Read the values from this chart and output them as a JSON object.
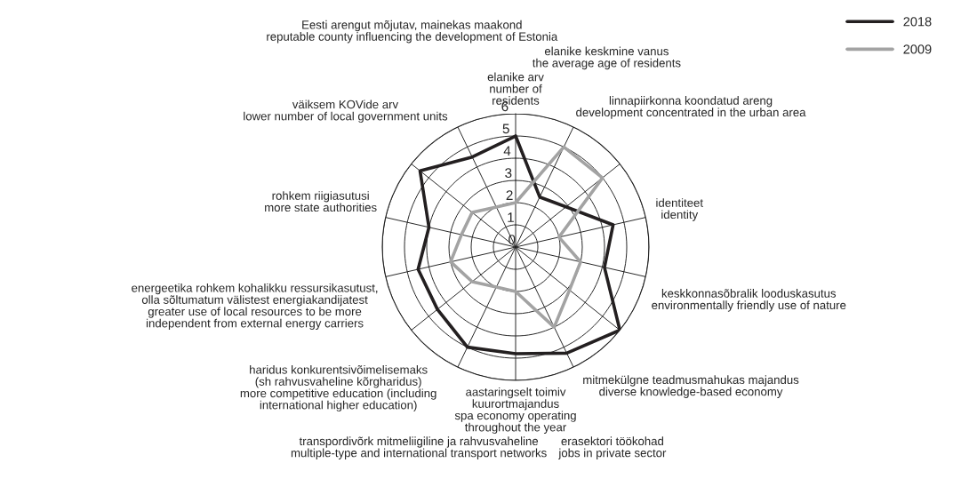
{
  "chart_data": {
    "type": "radar",
    "categories": [
      "elanike arv\nnumber of\nresidents",
      "elanike keskmine vanus\nthe average age of residents",
      "linnapiirkonna koondatud areng\ndevelopment concentrated in the urban area",
      "identiteet\nidentity",
      "keskkonnasõbralik looduskasutus\nenvironmentally friendly use of nature",
      "mitmekülgne teadmusmahukas majandus\ndiverse knowledge-based economy",
      "erasektori töökohad\njobs in private sector",
      "aastaringselt toimiv\nkuurortmajandus\nspa economy operating\nthroughout the year",
      "transpordivõrk mitmeliigiline ja rahvusvaheline\nmultiple-type and international transport networks",
      "haridus konkurentsivõimelisemaks\n(sh rahvusvaheline kõrgharidus)\nmore competitive education (including\ninternational higher education)",
      "energeetika rohkem kohalikku ressursikasutust,\nolla sõltumatum välistest energiakandijatest\ngreater use of local resources to be more\nindependent from external energy carriers",
      "rohkem riigiasutusi\nmore state authorities",
      "väiksem KOVide arv\nlower number of local government units",
      "Eesti arengut mõjutav, mainekas maakond\nreputable county influencing the development of Estonia"
    ],
    "series": [
      {
        "name": "2018",
        "color": "#231f20",
        "values": [
          5,
          2.5,
          2.9,
          4.5,
          4.1,
          6,
          5.3,
          4.8,
          5,
          4.5,
          4.5,
          4,
          5.5,
          4.5
        ]
      },
      {
        "name": "2009",
        "color": "#a3a3a3",
        "values": [
          2,
          5,
          5,
          2,
          3,
          3.1,
          4,
          2,
          2,
          2.5,
          3,
          2.5,
          2.5,
          2
        ]
      }
    ],
    "ylim": [
      0,
      6
    ],
    "yticks": [
      0,
      1,
      2,
      3,
      4,
      5,
      6
    ],
    "grid": true,
    "legend": "top right",
    "line_style": "solid",
    "marker": "none"
  }
}
